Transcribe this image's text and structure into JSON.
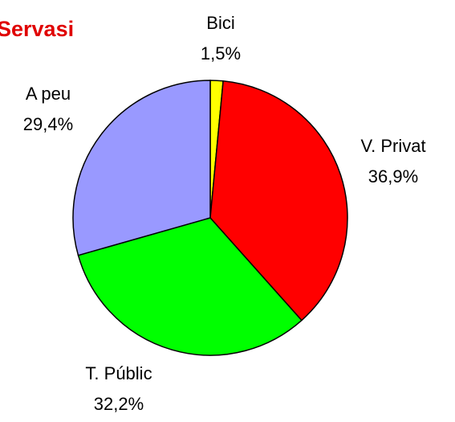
{
  "chart_data": {
    "type": "pie",
    "title": "Servasi",
    "categories": [
      "Bici",
      "V. Privat",
      "T. Públic",
      "A peu"
    ],
    "values": [
      1.5,
      36.9,
      32.2,
      29.4
    ],
    "value_labels": [
      "1,5%",
      "36,9%",
      "32,2%",
      "29,4%"
    ],
    "colors": [
      "#ffff00",
      "#ff0000",
      "#00ff00",
      "#9999ff"
    ]
  }
}
